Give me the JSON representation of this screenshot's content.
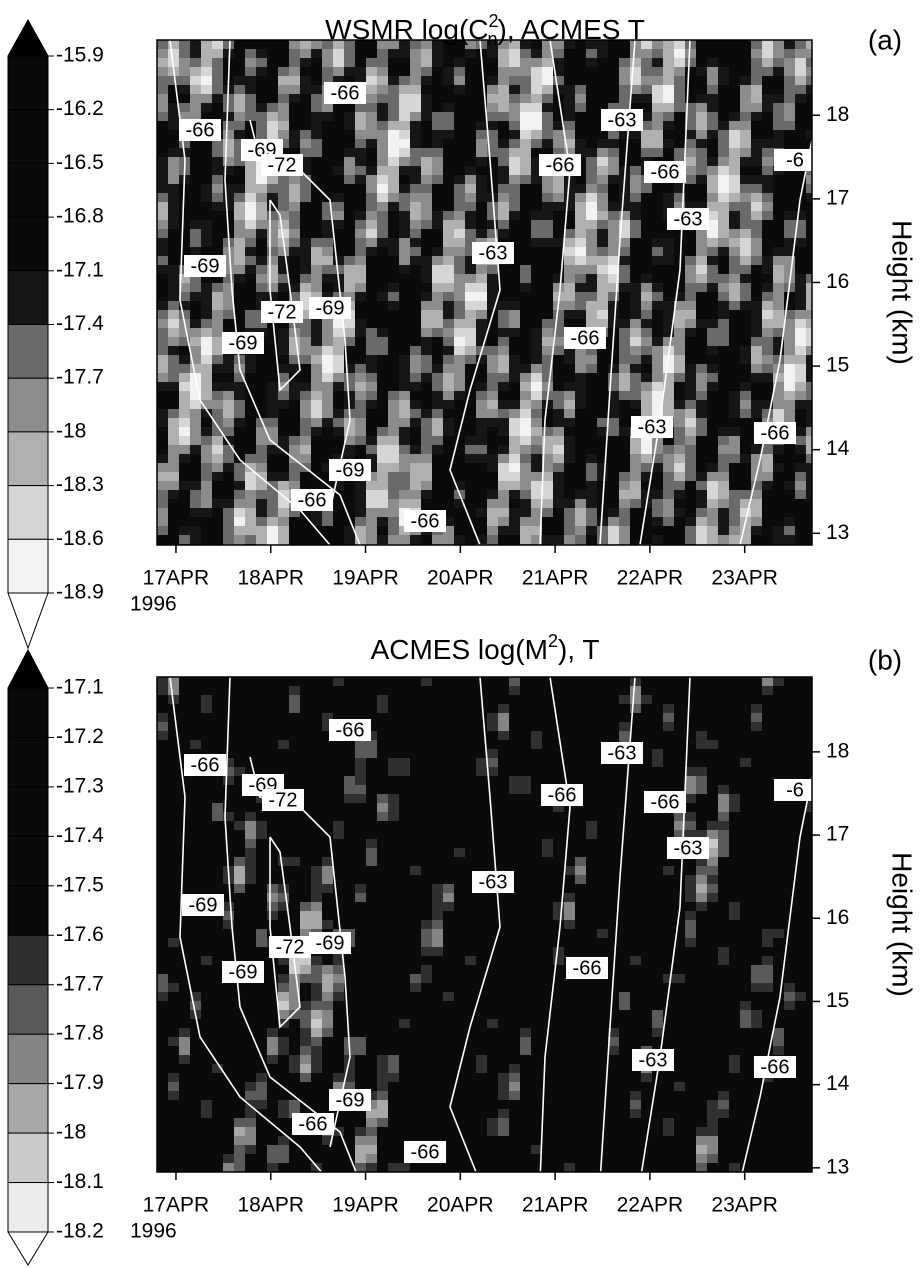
{
  "chart_data": [
    {
      "type": "contour",
      "title": [
        "WSMR log(C",
        "2",
        "n",
        "), ACMES T"
      ],
      "panel_label": "(a)",
      "y_label": "Height (km)",
      "x_year": "1996",
      "xlim": [
        16.8,
        23.71
      ],
      "xticks": [
        {
          "value": 17,
          "label": "17APR"
        },
        {
          "value": 18,
          "label": "18APR"
        },
        {
          "value": 19,
          "label": "19APR"
        },
        {
          "value": 20,
          "label": "20APR"
        },
        {
          "value": 21,
          "label": "21APR"
        },
        {
          "value": 22,
          "label": "22APR"
        },
        {
          "value": 23,
          "label": "23APR"
        }
      ],
      "ylim": [
        12.86,
        18.9
      ],
      "yticks": [
        13,
        14,
        15,
        16,
        17,
        18
      ],
      "colorbar": {
        "ticks": [
          -15.9,
          -16.2,
          -16.5,
          -16.8,
          -17.1,
          -17.4,
          -17.7,
          -18,
          -18.3,
          -18.6,
          -18.9
        ],
        "colors": [
          "#0a0a0a",
          "#0a0a0a",
          "#0a0a0a",
          "#0a0a0a",
          "#161616",
          "#6a6a6a",
          "#8c8c8c",
          "#b0b0b0",
          "#d6d6d6",
          "#f2f2f2"
        ],
        "over_color": "#000000",
        "under_color": "#ffffff"
      },
      "contour_labels": [
        -66,
        -66,
        -69,
        -72,
        -69,
        -72,
        -69,
        -69,
        -69,
        -66,
        -66,
        -63,
        -66,
        -63,
        -66,
        -63,
        -66,
        -63,
        -66,
        "-6"
      ]
    },
    {
      "type": "contour",
      "title": [
        "ACMES log(M",
        "2",
        "",
        "), T"
      ],
      "panel_label": "(b)",
      "y_label": "Height (km)",
      "x_year": "1996",
      "xlim": [
        16.8,
        23.71
      ],
      "xticks": [
        {
          "value": 17,
          "label": "17APR"
        },
        {
          "value": 18,
          "label": "18APR"
        },
        {
          "value": 19,
          "label": "19APR"
        },
        {
          "value": 20,
          "label": "20APR"
        },
        {
          "value": 21,
          "label": "21APR"
        },
        {
          "value": 22,
          "label": "22APR"
        },
        {
          "value": 23,
          "label": "23APR"
        }
      ],
      "ylim": [
        12.95,
        18.9
      ],
      "yticks": [
        13,
        14,
        15,
        16,
        17,
        18
      ],
      "colorbar": {
        "ticks": [
          -17.1,
          -17.2,
          -17.3,
          -17.4,
          -17.5,
          -17.6,
          -17.7,
          -17.8,
          -17.9,
          -18,
          -18.1,
          -18.2
        ],
        "colors": [
          "#0a0a0a",
          "#0a0a0a",
          "#0a0a0a",
          "#0a0a0a",
          "#0a0a0a",
          "#303030",
          "#5a5a5a",
          "#858585",
          "#a8a8a8",
          "#cacaca",
          "#ececec"
        ],
        "over_color": "#000000",
        "under_color": "#ffffff"
      },
      "contour_labels": [
        -66,
        -66,
        -69,
        -72,
        -69,
        -72,
        -69,
        -69,
        -69,
        -66,
        -66,
        -63,
        -66,
        -63,
        -66,
        -63,
        -66,
        -63,
        -66,
        "-6"
      ]
    }
  ]
}
